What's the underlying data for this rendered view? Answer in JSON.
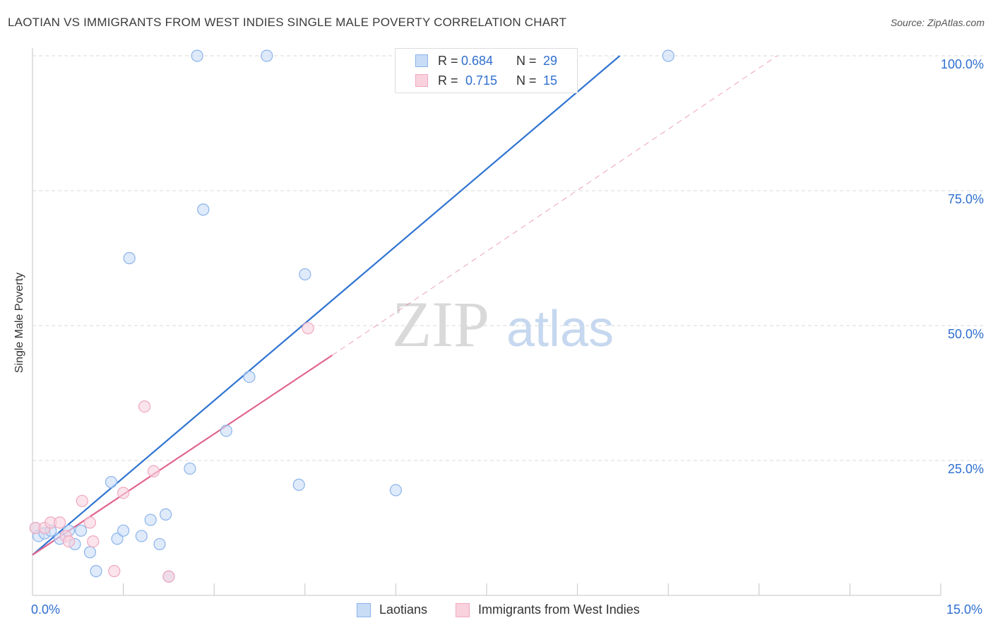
{
  "chart_data": {
    "type": "scatter",
    "title": "LAOTIAN VS IMMIGRANTS FROM WEST INDIES SINGLE MALE POVERTY CORRELATION CHART",
    "source": "Source: ZipAtlas.com",
    "ylabel": "Single Male Poverty",
    "xlim": [
      0,
      15
    ],
    "ylim": [
      0,
      100
    ],
    "x_tick_labels": [
      "0.0%",
      "15.0%"
    ],
    "y_ticks": [
      25,
      50,
      75,
      100
    ],
    "y_tick_labels": [
      "25.0%",
      "50.0%",
      "75.0%",
      "100.0%"
    ],
    "grid": true,
    "watermark": "ZIPatlas",
    "legend_stats": [
      {
        "r_label": "R =",
        "r": "0.684",
        "n_label": "N =",
        "n": "29"
      },
      {
        "r_label": "R =",
        "r": "0.715",
        "n_label": "N =",
        "n": "15"
      }
    ],
    "series": [
      {
        "name": "Laotians",
        "color": "#8ab4ea",
        "fill": "#c9dcf6",
        "line_color": "#2f74d0",
        "trend": {
          "x0": 0.0,
          "y0": 7.5,
          "x1": 9.7,
          "y1": 100
        },
        "points": [
          [
            0.05,
            12.5
          ],
          [
            0.1,
            11
          ],
          [
            0.2,
            11.5
          ],
          [
            0.3,
            12
          ],
          [
            0.45,
            10.5
          ],
          [
            0.6,
            12
          ],
          [
            0.7,
            9.5
          ],
          [
            0.8,
            12
          ],
          [
            0.95,
            8
          ],
          [
            1.05,
            4.5
          ],
          [
            1.3,
            21
          ],
          [
            1.4,
            10.5
          ],
          [
            1.5,
            12
          ],
          [
            1.6,
            62.5
          ],
          [
            1.8,
            11
          ],
          [
            1.95,
            14
          ],
          [
            2.1,
            9.5
          ],
          [
            2.2,
            15
          ],
          [
            2.25,
            3.5
          ],
          [
            2.6,
            23.5
          ],
          [
            2.72,
            100
          ],
          [
            2.82,
            71.5
          ],
          [
            3.2,
            30.5
          ],
          [
            3.58,
            40.5
          ],
          [
            3.87,
            100
          ],
          [
            4.4,
            20.5
          ],
          [
            4.5,
            59.5
          ],
          [
            6.0,
            19.5
          ],
          [
            10.5,
            100
          ]
        ]
      },
      {
        "name": "Immigrants from West Indies",
        "color": "#f0a8bf",
        "fill": "#f9d2de",
        "line_color": "#e0668f",
        "trend": {
          "x0": 0.0,
          "y0": 7.5,
          "x1": 4.95,
          "y1": 44.5
        },
        "trend_ext": {
          "x0": 4.95,
          "y0": 44.5,
          "x1": 12.3,
          "y1": 100
        },
        "points": [
          [
            0.05,
            12.5
          ],
          [
            0.2,
            12.5
          ],
          [
            0.3,
            13.5
          ],
          [
            0.45,
            13.5
          ],
          [
            0.55,
            11
          ],
          [
            0.6,
            10
          ],
          [
            0.82,
            17.5
          ],
          [
            0.95,
            13.5
          ],
          [
            1.0,
            10
          ],
          [
            1.35,
            4.5
          ],
          [
            1.5,
            19
          ],
          [
            1.85,
            35
          ],
          [
            2.0,
            23
          ],
          [
            2.25,
            3.5
          ],
          [
            4.55,
            49.5
          ]
        ]
      }
    ]
  }
}
